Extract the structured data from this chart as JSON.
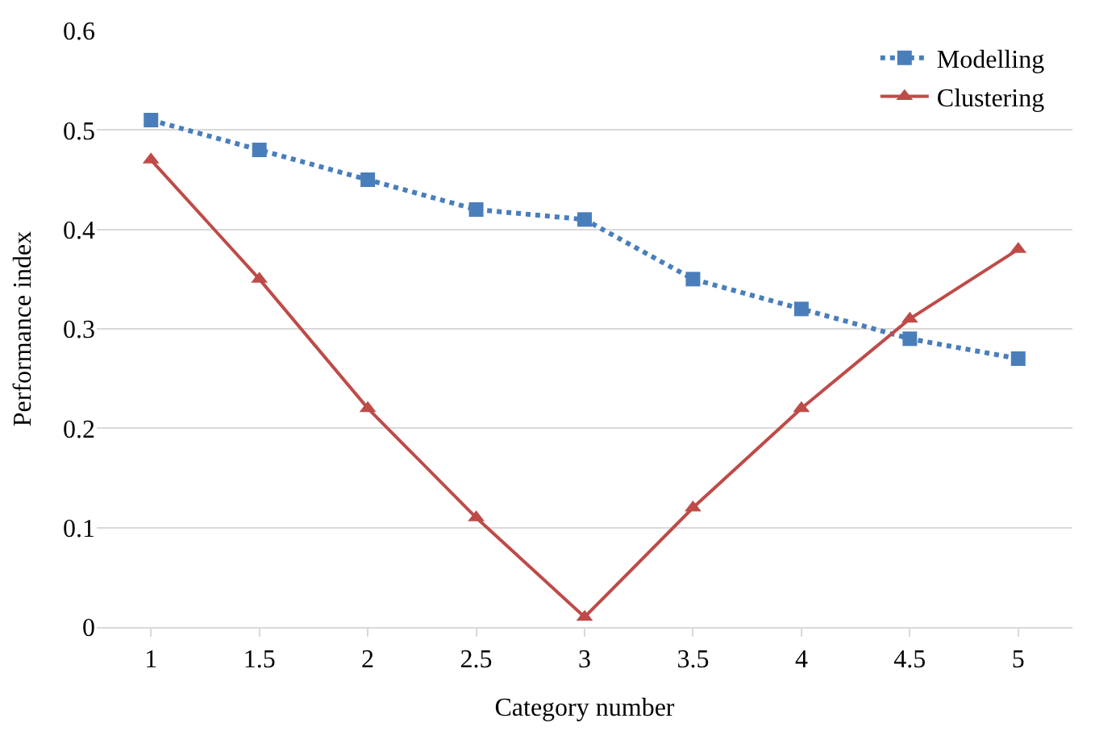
{
  "chart_data": {
    "type": "line",
    "xlabel": "Category number",
    "ylabel": "Performance index",
    "categories": [
      "1",
      "1.5",
      "2",
      "2.5",
      "3",
      "3.5",
      "4",
      "4.5",
      "5"
    ],
    "series": [
      {
        "name": "Modelling",
        "color": "#4a7ebb",
        "marker": "square",
        "line_style": "dotted",
        "values": [
          0.51,
          0.48,
          0.45,
          0.42,
          0.41,
          0.35,
          0.32,
          0.29,
          0.27
        ]
      },
      {
        "name": "Clustering",
        "color": "#be4b48",
        "marker": "triangle",
        "line_style": "solid",
        "values": [
          0.47,
          0.35,
          0.22,
          0.11,
          0.01,
          0.12,
          0.22,
          0.31,
          0.38
        ]
      }
    ],
    "ylim": [
      0,
      0.6
    ],
    "yticks": [
      0,
      0.1,
      0.2,
      0.3,
      0.4,
      0.5,
      0.6
    ],
    "grid": "y",
    "legend": "top right"
  }
}
